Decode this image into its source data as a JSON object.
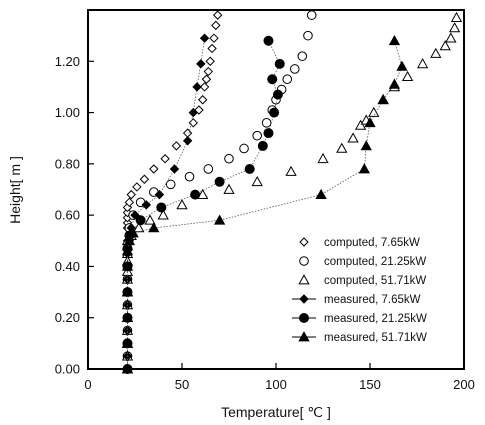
{
  "chart_data": {
    "type": "scatter",
    "xlabel": "Temperature[ ℃ ]",
    "ylabel": "Height[ m ]",
    "xlim": [
      0,
      200
    ],
    "ylim": [
      0,
      1.4
    ],
    "xticks": [
      "0",
      "50",
      "100",
      "150",
      "200"
    ],
    "yticks": [
      "0.00",
      "0.20",
      "0.40",
      "0.60",
      "0.80",
      "1.00",
      "1.20"
    ],
    "grid": false,
    "legend_position": "bottom-right",
    "series": [
      {
        "name": "computed,  7.65kW",
        "marker": "diamond-open",
        "line": false,
        "x": [
          21,
          21,
          21,
          21,
          21,
          21,
          21,
          21,
          21,
          21,
          21,
          21,
          21,
          21,
          21,
          21,
          22,
          23,
          26,
          30,
          35,
          41,
          47,
          53,
          56,
          59,
          61,
          62,
          63,
          64,
          65,
          66,
          67,
          68,
          69
        ],
        "y": [
          0.0,
          0.05,
          0.1,
          0.15,
          0.2,
          0.25,
          0.3,
          0.35,
          0.4,
          0.45,
          0.5,
          0.55,
          0.57,
          0.59,
          0.61,
          0.63,
          0.65,
          0.68,
          0.71,
          0.74,
          0.78,
          0.82,
          0.87,
          0.92,
          0.96,
          1.01,
          1.05,
          1.1,
          1.13,
          1.16,
          1.2,
          1.25,
          1.29,
          1.34,
          1.38
        ]
      },
      {
        "name": "computed,  21.25kW",
        "marker": "circle-open",
        "line": false,
        "x": [
          21,
          21,
          21,
          21,
          21,
          21,
          21,
          21,
          21,
          22,
          24,
          28,
          35,
          44,
          54,
          64,
          75,
          83,
          90,
          95,
          98,
          100,
          103,
          106,
          110,
          114,
          117,
          119
        ],
        "y": [
          0.0,
          0.05,
          0.1,
          0.15,
          0.2,
          0.25,
          0.3,
          0.35,
          0.4,
          0.55,
          0.6,
          0.65,
          0.69,
          0.72,
          0.75,
          0.78,
          0.82,
          0.86,
          0.91,
          0.96,
          1.01,
          1.05,
          1.09,
          1.13,
          1.17,
          1.22,
          1.3,
          1.38
        ]
      },
      {
        "name": "computed,  51.71kW",
        "marker": "triangle-open",
        "line": false,
        "x": [
          21,
          21,
          21,
          21,
          21,
          21,
          21,
          21,
          21,
          21,
          21,
          21,
          21,
          23,
          27,
          33,
          40,
          50,
          61,
          75,
          90,
          108,
          125,
          135,
          141,
          145,
          148,
          152,
          157,
          163,
          170,
          178,
          185,
          190,
          193,
          195,
          196
        ],
        "y": [
          0.0,
          0.05,
          0.1,
          0.15,
          0.2,
          0.25,
          0.3,
          0.35,
          0.38,
          0.42,
          0.45,
          0.48,
          0.5,
          0.52,
          0.55,
          0.58,
          0.6,
          0.64,
          0.68,
          0.7,
          0.73,
          0.77,
          0.82,
          0.86,
          0.9,
          0.95,
          0.97,
          1.0,
          1.05,
          1.1,
          1.14,
          1.19,
          1.23,
          1.26,
          1.29,
          1.33,
          1.37
        ]
      },
      {
        "name": "measured,  7.65kW",
        "marker": "diamond-filled",
        "line": true,
        "x": [
          21,
          21,
          21,
          21,
          21,
          21,
          21,
          21,
          21,
          21,
          22,
          23,
          25,
          31,
          38,
          46,
          53,
          56,
          58,
          60,
          62
        ],
        "y": [
          0.0,
          0.05,
          0.1,
          0.15,
          0.2,
          0.25,
          0.3,
          0.35,
          0.4,
          0.45,
          0.5,
          0.55,
          0.6,
          0.64,
          0.68,
          0.78,
          0.89,
          1.0,
          1.1,
          1.19,
          1.29
        ]
      },
      {
        "name": "measured,  21.25kW",
        "marker": "circle-filled",
        "line": true,
        "x": [
          21,
          21,
          21,
          21,
          21,
          21,
          22,
          28,
          39,
          57,
          70,
          86,
          93,
          96,
          99,
          101,
          98,
          102,
          96
        ],
        "y": [
          0.0,
          0.1,
          0.2,
          0.3,
          0.4,
          0.47,
          0.52,
          0.58,
          0.63,
          0.68,
          0.73,
          0.78,
          0.87,
          0.92,
          1.0,
          1.07,
          1.13,
          1.19,
          1.28
        ]
      },
      {
        "name": "measured,  51.71kW",
        "marker": "triangle-filled",
        "line": true,
        "x": [
          21,
          21,
          21,
          21,
          21,
          21,
          22,
          24,
          35,
          70,
          124,
          147,
          148,
          150,
          157,
          163,
          167,
          163
        ],
        "y": [
          0.0,
          0.1,
          0.2,
          0.3,
          0.4,
          0.46,
          0.5,
          0.53,
          0.55,
          0.58,
          0.68,
          0.78,
          0.87,
          0.96,
          1.05,
          1.11,
          1.18,
          1.28
        ]
      }
    ]
  }
}
